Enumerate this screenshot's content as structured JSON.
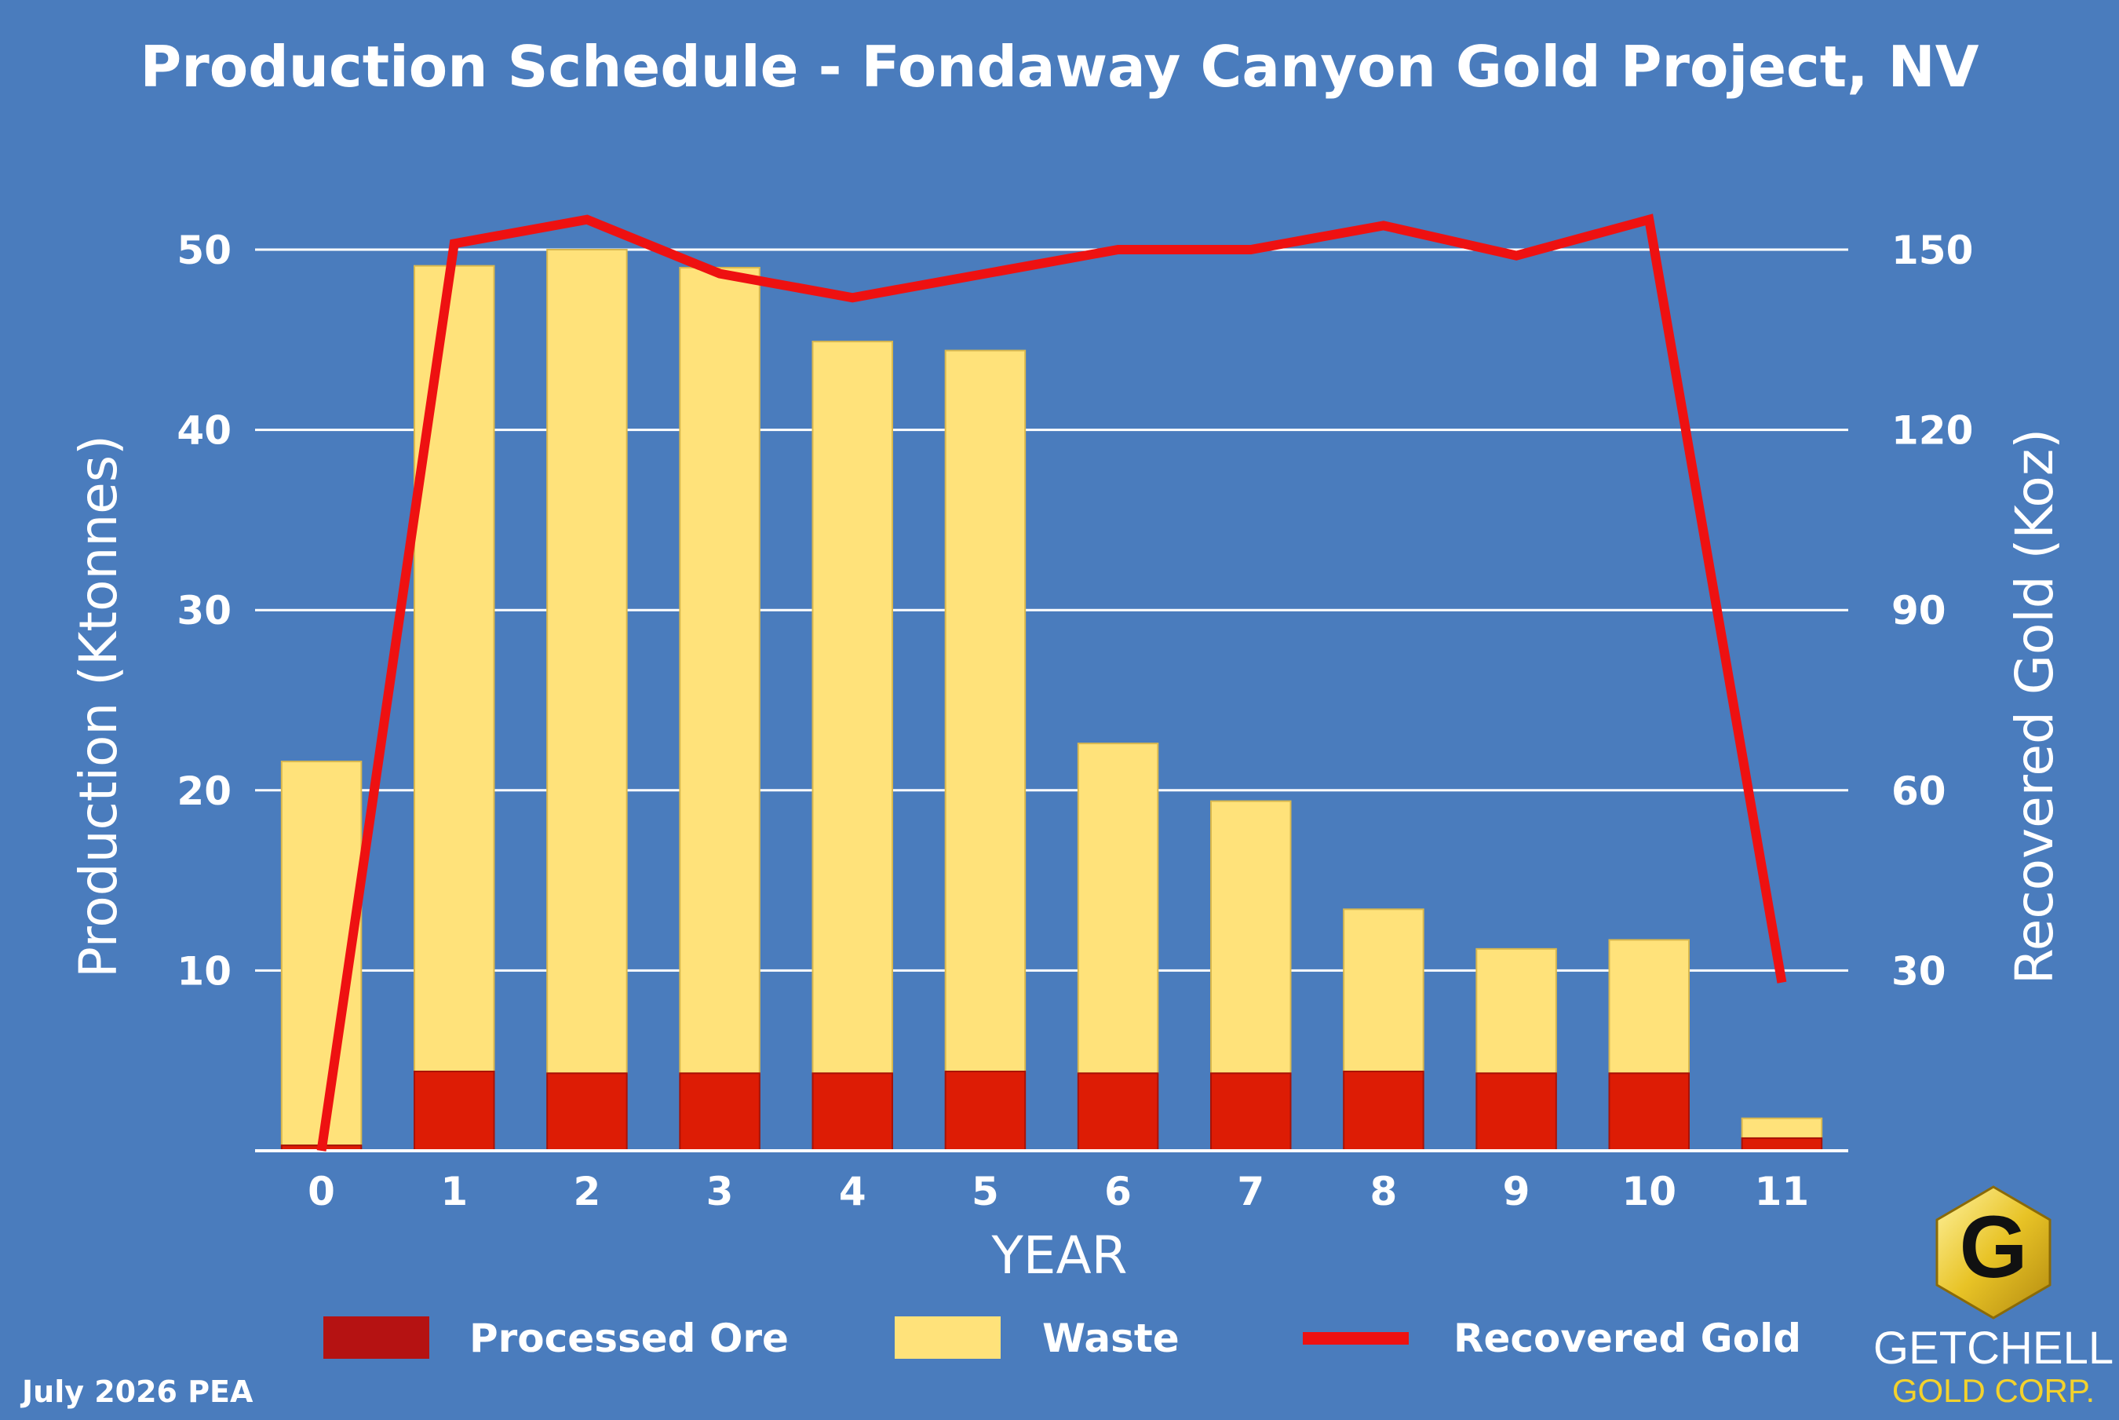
{
  "title": "Production Schedule - Fondaway Canyon Gold Project, NV",
  "footer": "July 2026 PEA",
  "brand": {
    "name": "GETCHELL",
    "sub": "GOLD CORP.",
    "logo_letter": "G"
  },
  "colors": {
    "background": "#4a7cbd",
    "processed_ore": "#dd1c05",
    "waste": "#ffe27a",
    "recovered_gold": "#ee1111",
    "grid": "#ffffff"
  },
  "chart_data": {
    "type": "bar",
    "stacked": true,
    "title": "Production Schedule - Fondaway Canyon Gold Project, NV",
    "xlabel": "YEAR",
    "ylabel": "Production (Ktonnes)",
    "y2label": "Recovered Gold (Koz)",
    "categories": [
      "0",
      "1",
      "2",
      "3",
      "4",
      "5",
      "6",
      "7",
      "8",
      "9",
      "10",
      "11"
    ],
    "ylim": [
      0,
      50
    ],
    "yticks": [
      "10",
      "20",
      "30",
      "40",
      "50"
    ],
    "y2lim": [
      0,
      150
    ],
    "y2ticks": [
      "30",
      "60",
      "90",
      "120",
      "150"
    ],
    "grid": true,
    "legend_position": "bottom",
    "series": [
      {
        "name": "Processed Ore",
        "type": "bar",
        "axis": "left",
        "values": [
          0.3,
          4.4,
          4.3,
          4.3,
          4.3,
          4.4,
          4.3,
          4.3,
          4.4,
          4.3,
          4.3,
          0.7
        ]
      },
      {
        "name": "Waste",
        "type": "bar",
        "axis": "left",
        "values": [
          21.3,
          44.7,
          45.7,
          44.7,
          40.6,
          40.0,
          18.3,
          15.1,
          9.0,
          6.9,
          7.4,
          1.1
        ]
      },
      {
        "name": "Recovered Gold",
        "type": "line",
        "axis": "right",
        "values": [
          0,
          151,
          155,
          146,
          142,
          146,
          150,
          150,
          154,
          149,
          155,
          28
        ]
      }
    ]
  }
}
